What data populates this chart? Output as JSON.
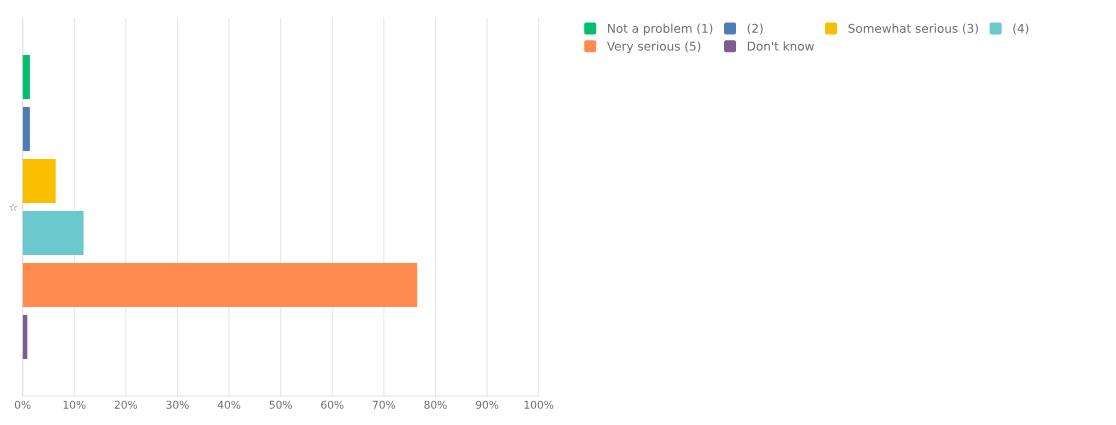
{
  "chart_data": {
    "type": "bar",
    "orientation": "horizontal",
    "categories": [
      "☆"
    ],
    "series": [
      {
        "name": "Not a problem (1)",
        "color": "#00bf6f",
        "values": [
          1.4
        ]
      },
      {
        "name": "(2)",
        "color": "#507cb6",
        "values": [
          1.4
        ]
      },
      {
        "name": "Somewhat serious (3)",
        "color": "#f9be00",
        "values": [
          6.4
        ]
      },
      {
        "name": "(4)",
        "color": "#6bc8cd",
        "values": [
          11.8
        ]
      },
      {
        "name": "Very serious (5)",
        "color": "#ff8b4f",
        "values": [
          76.5
        ]
      },
      {
        "name": "Don't know",
        "color": "#7d5c91",
        "values": [
          0.9
        ]
      }
    ],
    "xlim": [
      0,
      100
    ],
    "xticks": [
      {
        "value": 0,
        "label": "0%"
      },
      {
        "value": 10,
        "label": "10%"
      },
      {
        "value": 20,
        "label": "20%"
      },
      {
        "value": 30,
        "label": "30%"
      },
      {
        "value": 40,
        "label": "40%"
      },
      {
        "value": 50,
        "label": "50%"
      },
      {
        "value": 60,
        "label": "60%"
      },
      {
        "value": 70,
        "label": "70%"
      },
      {
        "value": 80,
        "label": "80%"
      },
      {
        "value": 90,
        "label": "90%"
      },
      {
        "value": 100,
        "label": "100%"
      }
    ],
    "grid": "x",
    "legend": "top right"
  }
}
